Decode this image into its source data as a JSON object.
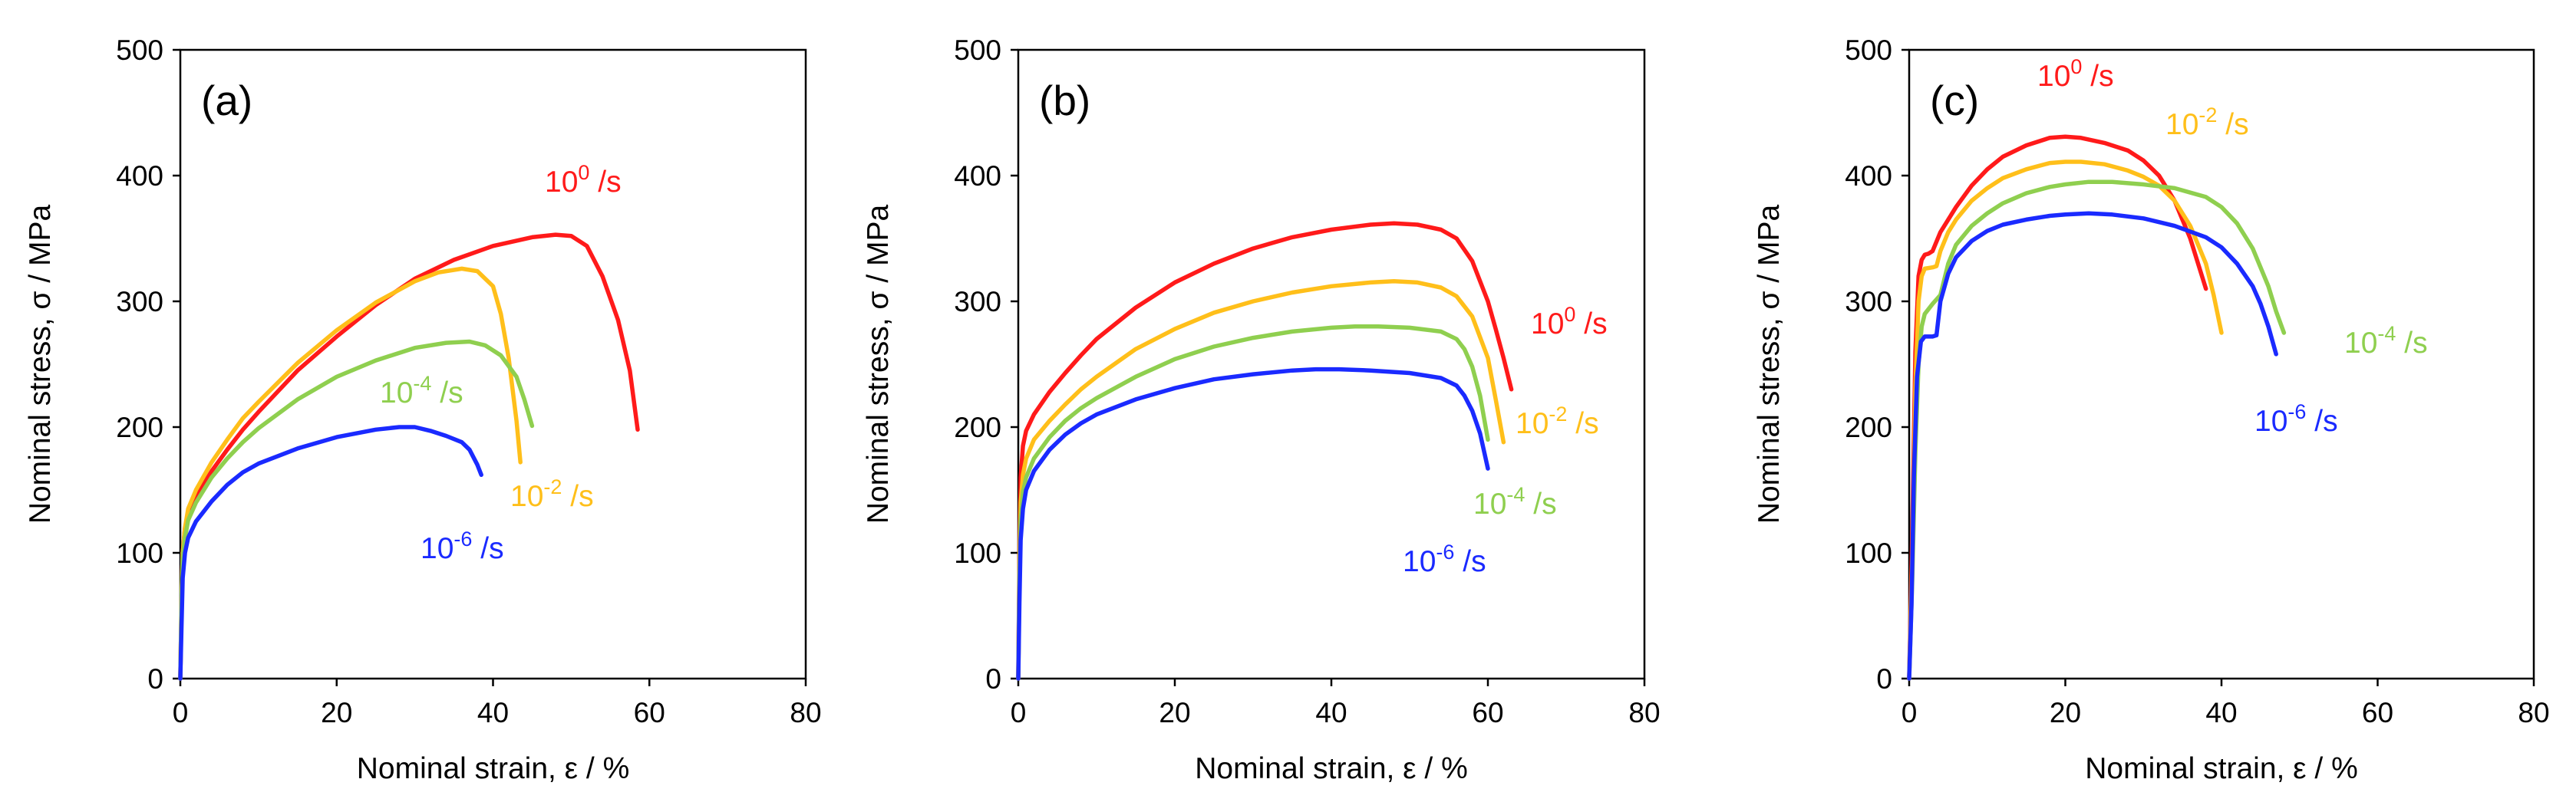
{
  "chart_data": [
    {
      "type": "line",
      "panel": "(a)",
      "xlabel": "Nominal strain, ε / %",
      "ylabel": "Nominal stress, σ / MPa",
      "xlim": [
        0,
        80
      ],
      "ylim": [
        0,
        500
      ],
      "xticks": [
        0,
        20,
        40,
        60,
        80
      ],
      "yticks": [
        0,
        100,
        200,
        300,
        400,
        500
      ],
      "grid": false,
      "series": [
        {
          "name": "10^0 /s",
          "base": "10",
          "exp": "0",
          "unit": " /s",
          "color": "#ff1a1a",
          "x": [
            0,
            0.15,
            0.3,
            0.6,
            1,
            2,
            4,
            6,
            8,
            10,
            15,
            20,
            25,
            30,
            35,
            40,
            45,
            48,
            50,
            52,
            54,
            56,
            57.5,
            58.5
          ],
          "y": [
            0,
            60,
            100,
            120,
            131,
            145,
            165,
            182,
            198,
            212,
            245,
            272,
            297,
            318,
            333,
            344,
            351,
            353,
            352,
            344,
            320,
            285,
            245,
            198
          ]
        },
        {
          "name": "10^-2 /s",
          "base": "10",
          "exp": "-2",
          "unit": " /s",
          "color": "#ffbf1a",
          "x": [
            0,
            0.15,
            0.3,
            0.6,
            1,
            2,
            4,
            6,
            8,
            10,
            15,
            20,
            25,
            30,
            33,
            36,
            38,
            40,
            41,
            42,
            43,
            43.5
          ],
          "y": [
            0,
            60,
            100,
            120,
            135,
            150,
            172,
            190,
            207,
            220,
            251,
            277,
            299,
            316,
            323,
            326,
            324,
            312,
            290,
            255,
            205,
            172
          ]
        },
        {
          "name": "10^-4 /s",
          "base": "10",
          "exp": "-4",
          "unit": " /s",
          "color": "#8fcf4f",
          "x": [
            0,
            0.15,
            0.3,
            0.6,
            1,
            2,
            4,
            6,
            8,
            10,
            15,
            20,
            25,
            30,
            34,
            37,
            39,
            41,
            43,
            44,
            45
          ],
          "y": [
            0,
            60,
            95,
            112,
            126,
            140,
            160,
            175,
            188,
            199,
            222,
            240,
            253,
            263,
            267,
            268,
            265,
            257,
            240,
            222,
            201
          ]
        },
        {
          "name": "10^-6 /s",
          "base": "10",
          "exp": "-6",
          "unit": " /s",
          "color": "#1a2aff",
          "x": [
            0,
            0.15,
            0.3,
            0.6,
            1,
            2,
            4,
            6,
            8,
            10,
            15,
            20,
            25,
            28,
            30,
            32,
            34,
            36,
            37,
            38,
            38.5
          ],
          "y": [
            0,
            40,
            80,
            100,
            112,
            125,
            141,
            154,
            164,
            171,
            183,
            192,
            198,
            200,
            200,
            197,
            193,
            188,
            182,
            170,
            162
          ]
        }
      ]
    },
    {
      "type": "line",
      "panel": "(b)",
      "xlabel": "Nominal strain, ε / %",
      "ylabel": "Nominal stress, σ / MPa",
      "xlim": [
        0,
        80
      ],
      "ylim": [
        0,
        500
      ],
      "xticks": [
        0,
        20,
        40,
        60,
        80
      ],
      "yticks": [
        0,
        100,
        200,
        300,
        400,
        500
      ],
      "grid": false,
      "series": [
        {
          "name": "10^0 /s",
          "base": "10",
          "exp": "0",
          "unit": " /s",
          "color": "#ff1a1a",
          "x": [
            0,
            0.15,
            0.3,
            0.6,
            1,
            2,
            4,
            6,
            8,
            10,
            15,
            20,
            25,
            30,
            35,
            40,
            45,
            48,
            51,
            54,
            56,
            58,
            60,
            61,
            62,
            63
          ],
          "y": [
            0,
            100,
            160,
            185,
            197,
            210,
            228,
            243,
            257,
            270,
            295,
            315,
            330,
            342,
            351,
            357,
            361,
            362,
            361,
            357,
            350,
            332,
            300,
            278,
            255,
            230
          ]
        },
        {
          "name": "10^-2 /s",
          "base": "10",
          "exp": "-2",
          "unit": " /s",
          "color": "#ffbf1a",
          "x": [
            0,
            0.15,
            0.3,
            0.6,
            1,
            2,
            4,
            6,
            8,
            10,
            15,
            20,
            25,
            30,
            35,
            40,
            45,
            48,
            51,
            54,
            56,
            58,
            60,
            61,
            62
          ],
          "y": [
            0,
            90,
            140,
            162,
            175,
            190,
            205,
            218,
            230,
            240,
            262,
            278,
            291,
            300,
            307,
            312,
            315,
            316,
            315,
            311,
            304,
            288,
            255,
            222,
            188
          ]
        },
        {
          "name": "10^-4 /s",
          "base": "10",
          "exp": "-4",
          "unit": " /s",
          "color": "#8fcf4f",
          "x": [
            0,
            0.15,
            0.3,
            0.6,
            1,
            2,
            4,
            6,
            8,
            10,
            15,
            20,
            25,
            30,
            35,
            40,
            43,
            46,
            50,
            54,
            56,
            57,
            58,
            59,
            60
          ],
          "y": [
            0,
            80,
            125,
            148,
            160,
            175,
            192,
            205,
            215,
            223,
            240,
            254,
            264,
            271,
            276,
            279,
            280,
            280,
            279,
            276,
            270,
            262,
            248,
            225,
            190
          ]
        },
        {
          "name": "10^-6 /s",
          "base": "10",
          "exp": "-6",
          "unit": " /s",
          "color": "#1a2aff",
          "x": [
            0,
            0.15,
            0.3,
            0.6,
            1,
            2,
            4,
            6,
            8,
            10,
            15,
            20,
            25,
            30,
            35,
            38,
            41,
            45,
            50,
            54,
            56,
            57,
            58,
            59,
            60
          ],
          "y": [
            0,
            60,
            110,
            135,
            150,
            165,
            182,
            194,
            203,
            210,
            222,
            231,
            238,
            242,
            245,
            246,
            246,
            245,
            243,
            239,
            233,
            225,
            213,
            195,
            167
          ]
        }
      ]
    },
    {
      "type": "line",
      "panel": "(c)",
      "xlabel": "Nominal strain, ε / %",
      "ylabel": "Nominal stress, σ / MPa",
      "xlim": [
        0,
        80
      ],
      "ylim": [
        0,
        500
      ],
      "xticks": [
        0,
        20,
        40,
        60,
        80
      ],
      "yticks": [
        0,
        100,
        200,
        300,
        400,
        500
      ],
      "grid": false,
      "series": [
        {
          "name": "10^0 /s",
          "base": "10",
          "exp": "0",
          "unit": " /s",
          "color": "#ff1a1a",
          "x": [
            0,
            0.4,
            0.8,
            1.2,
            1.6,
            2,
            2.5,
            3,
            4,
            6,
            8,
            10,
            12,
            15,
            18,
            20,
            22,
            25,
            28,
            30,
            32,
            34,
            35,
            36,
            37,
            38
          ],
          "y": [
            0,
            120,
            260,
            320,
            333,
            337,
            338,
            340,
            355,
            375,
            392,
            405,
            415,
            424,
            430,
            431,
            430,
            426,
            420,
            412,
            400,
            380,
            365,
            350,
            330,
            310
          ]
        },
        {
          "name": "10^-2 /s",
          "base": "10",
          "exp": "-2",
          "unit": " /s",
          "color": "#ffbf1a",
          "x": [
            0,
            0.4,
            0.8,
            1.2,
            1.6,
            2,
            3,
            3.5,
            4,
            5,
            6,
            8,
            10,
            12,
            15,
            18,
            20,
            22,
            25,
            28,
            30,
            32,
            34,
            36,
            38,
            39,
            40
          ],
          "y": [
            0,
            100,
            230,
            300,
            320,
            326,
            327,
            328,
            340,
            355,
            365,
            380,
            390,
            398,
            405,
            410,
            411,
            411,
            409,
            404,
            399,
            392,
            380,
            360,
            330,
            305,
            275
          ]
        },
        {
          "name": "10^-4 /s",
          "base": "10",
          "exp": "-4",
          "unit": " /s",
          "color": "#8fcf4f",
          "x": [
            0,
            0.4,
            0.8,
            1.2,
            1.6,
            2,
            3,
            4,
            5,
            6,
            8,
            10,
            12,
            15,
            18,
            20,
            23,
            26,
            30,
            34,
            38,
            40,
            42,
            44,
            46,
            47,
            48
          ],
          "y": [
            0,
            80,
            180,
            250,
            280,
            290,
            298,
            305,
            330,
            345,
            360,
            370,
            378,
            386,
            391,
            393,
            395,
            395,
            393,
            390,
            383,
            375,
            362,
            342,
            312,
            292,
            275
          ]
        },
        {
          "name": "10^-6 /s",
          "base": "10",
          "exp": "-6",
          "unit": " /s",
          "color": "#1a2aff",
          "x": [
            0,
            0.3,
            0.6,
            1,
            1.5,
            2,
            3,
            3.5,
            4,
            5,
            6,
            8,
            10,
            12,
            15,
            18,
            20,
            23,
            26,
            30,
            34,
            38,
            40,
            42,
            44,
            45,
            46,
            47
          ],
          "y": [
            0,
            60,
            160,
            240,
            268,
            272,
            272,
            273,
            300,
            322,
            335,
            348,
            356,
            361,
            365,
            368,
            369,
            370,
            369,
            366,
            360,
            351,
            343,
            330,
            312,
            298,
            280,
            258
          ]
        }
      ]
    }
  ]
}
